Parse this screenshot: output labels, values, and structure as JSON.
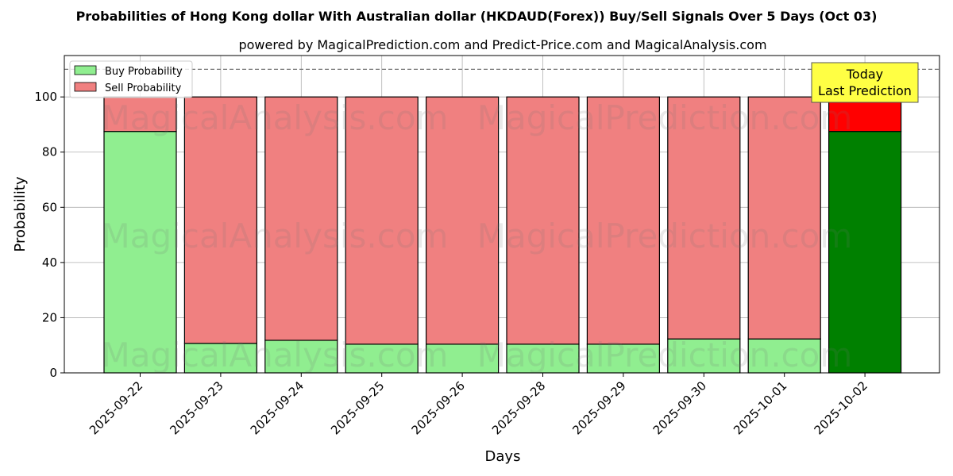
{
  "chart_data": {
    "type": "bar",
    "title": "Probabilities of Hong Kong dollar With Australian dollar (HKDAUD(Forex)) Buy/Sell Signals Over 5 Days (Oct 03)",
    "subtitle": "powered by MagicalPrediction.com and Predict-Price.com and MagicalAnalysis.com",
    "xlabel": "Days",
    "ylabel": "Probability",
    "ylim": [
      0,
      115
    ],
    "yticks": [
      0,
      20,
      40,
      60,
      80,
      100
    ],
    "reference_line": 110,
    "grid": true,
    "legend_position": "top-left",
    "categories": [
      "2025-09-22",
      "2025-09-23",
      "2025-09-24",
      "2025-09-25",
      "2025-09-26",
      "2025-09-28",
      "2025-09-29",
      "2025-09-30",
      "2025-10-01",
      "2025-10-02"
    ],
    "series": [
      {
        "name": "Buy Probability",
        "color": "#90ee90",
        "highlight_color": "#008000",
        "values": [
          87.5,
          10.7,
          11.8,
          10.4,
          10.4,
          10.4,
          10.4,
          12.3,
          12.3,
          87.5
        ]
      },
      {
        "name": "Sell Probability",
        "color": "#f08080",
        "highlight_color": "#ff0000",
        "values": [
          12.5,
          89.3,
          88.2,
          89.6,
          89.6,
          89.6,
          89.6,
          87.7,
          87.7,
          12.5
        ]
      }
    ],
    "annotation": {
      "lines": [
        "Today",
        "Last Prediction"
      ],
      "color": "#ffff44"
    },
    "watermarks": [
      "MagicalAnalysis.com",
      "MagicalPrediction.com"
    ]
  }
}
